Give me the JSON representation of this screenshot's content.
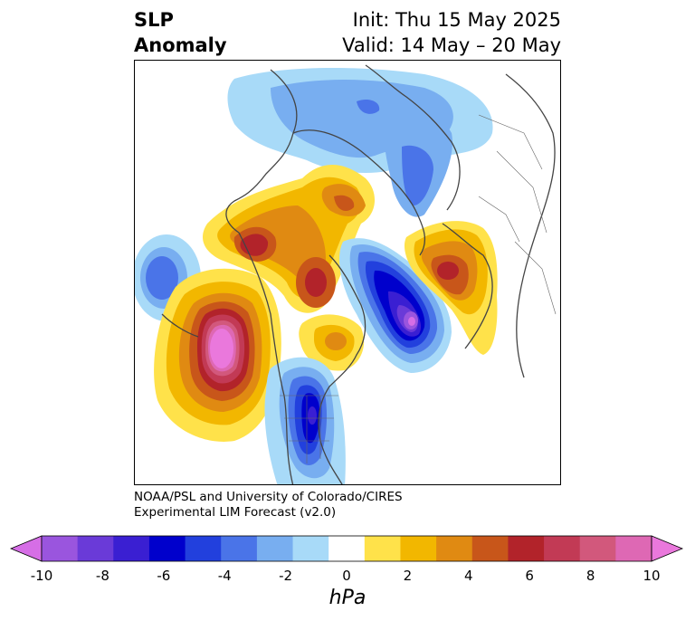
{
  "title": {
    "left_line1": "SLP",
    "left_line2": "Anomaly",
    "right_line1": "Init: Thu 15 May 2025",
    "right_line2": "Valid: 14 May – 20 May"
  },
  "credit": {
    "line1": "NOAA/PSL and University of Colorado/CIRES",
    "line2": "Experimental LIM Forecast (v2.0)"
  },
  "colorbar": {
    "unit": "hPa",
    "tick_labels": [
      "-10",
      "-8",
      "-6",
      "-4",
      "-2",
      "0",
      "2",
      "4",
      "6",
      "8",
      "10"
    ],
    "colors": [
      "#d66ee6",
      "#9a55de",
      "#6a3ad8",
      "#3a1fd2",
      "#0000cc",
      "#2240dd",
      "#4a74e8",
      "#78aef0",
      "#a8daf8",
      "#ffffff",
      "#ffe24a",
      "#f2b700",
      "#e08a12",
      "#c8561a",
      "#b2232a",
      "#c23a55",
      "#d2587c",
      "#de68b4",
      "#ea78dc"
    ],
    "extend": "both"
  }
}
